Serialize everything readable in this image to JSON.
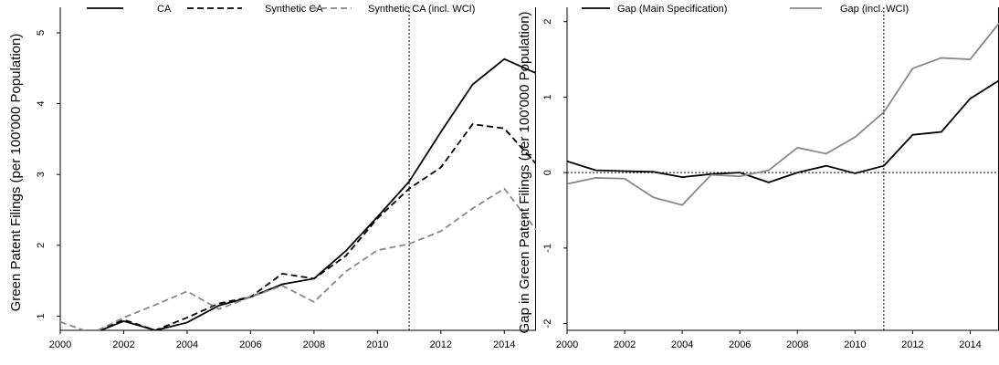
{
  "chart_data": [
    {
      "type": "line",
      "ylabel": "Green Patent Filings (per 100'000 Population)",
      "x": [
        2000,
        2001,
        2002,
        2003,
        2004,
        2005,
        2006,
        2007,
        2008,
        2009,
        2010,
        2011,
        2012,
        2013,
        2014,
        2015
      ],
      "xlim": [
        2000,
        2015
      ],
      "xticks": [
        2000,
        2002,
        2004,
        2006,
        2008,
        2010,
        2012,
        2014
      ],
      "ylim": [
        0.8,
        5.36
      ],
      "yticks": [
        1,
        2,
        3,
        4,
        5
      ],
      "vline": 2011,
      "series": [
        {
          "name": "CA",
          "color": "#000000",
          "linestyle": "solid",
          "values": [
            0.6,
            0.75,
            0.93,
            0.8,
            0.91,
            1.15,
            1.27,
            1.45,
            1.53,
            1.92,
            2.4,
            2.9,
            3.6,
            4.27,
            4.63,
            4.43
          ]
        },
        {
          "name": "Synthetic CA",
          "color": "#000000",
          "linestyle": "dashed",
          "values": [
            0.6,
            0.75,
            0.95,
            0.8,
            0.98,
            1.18,
            1.27,
            1.6,
            1.53,
            1.85,
            2.38,
            2.8,
            3.1,
            3.71,
            3.65,
            3.15
          ]
        },
        {
          "name": "Synthetic CA (incl. WCI)",
          "color": "#888888",
          "linestyle": "dashed",
          "values": [
            0.92,
            0.76,
            0.98,
            1.16,
            1.35,
            1.1,
            1.27,
            1.43,
            1.2,
            1.63,
            1.93,
            2.02,
            2.2,
            2.52,
            2.8,
            2.22
          ]
        }
      ]
    },
    {
      "type": "line",
      "ylabel": "Gap in Green Patent Filings (per 100'000 Population)",
      "x": [
        2000,
        2001,
        2002,
        2003,
        2004,
        2005,
        2006,
        2007,
        2008,
        2009,
        2010,
        2011,
        2012,
        2013,
        2014,
        2015
      ],
      "xlim": [
        2000,
        2015
      ],
      "xticks": [
        2000,
        2002,
        2004,
        2006,
        2008,
        2010,
        2012,
        2014
      ],
      "ylim": [
        -2.09,
        2.19
      ],
      "yticks": [
        -2,
        -1,
        0,
        1,
        2
      ],
      "vline": 2011,
      "hline": 0,
      "series": [
        {
          "name": "Gap (Main Specification)",
          "color": "#000000",
          "linestyle": "solid",
          "values": [
            0.15,
            0.03,
            0.02,
            0.01,
            -0.06,
            -0.02,
            0.0,
            -0.13,
            0.0,
            0.09,
            -0.01,
            0.09,
            0.5,
            0.54,
            0.98,
            1.22
          ]
        },
        {
          "name": "Gap (incl. WCI)",
          "color": "#888888",
          "linestyle": "solid",
          "values": [
            -0.15,
            -0.07,
            -0.08,
            -0.33,
            -0.43,
            -0.03,
            -0.05,
            0.03,
            0.33,
            0.25,
            0.47,
            0.8,
            1.38,
            1.52,
            1.5,
            1.98
          ]
        }
      ]
    }
  ]
}
